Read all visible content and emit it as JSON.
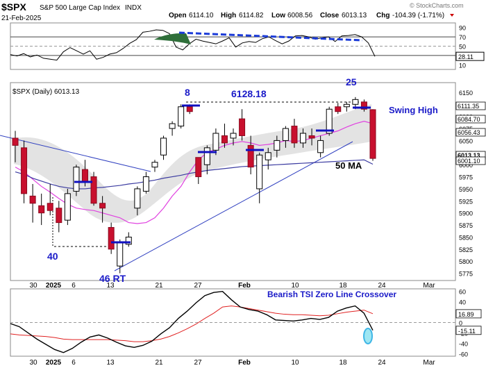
{
  "header": {
    "symbol": "$SPX",
    "description": "S&P 500 Large Cap Index",
    "exchange": "INDX",
    "date": "21-Feb-2025",
    "open_label": "Open",
    "open": "6114.10",
    "high_label": "High",
    "high": "6114.82",
    "low_label": "Low",
    "low": "6008.56",
    "close_label": "Close",
    "close": "6013.13",
    "chg_label": "Chg",
    "chg": "-104.39 (-1.71%)",
    "credit": "© StockCharts.com"
  },
  "chart_data": [
    {
      "type": "line",
      "name": "RSI",
      "ylim": [
        0,
        100
      ],
      "ticks": [
        90,
        70,
        50,
        30,
        10
      ],
      "current_label": "28.11",
      "values": [
        32,
        29,
        34,
        27,
        31,
        24,
        22,
        20,
        38,
        47,
        40,
        33,
        40,
        22,
        26,
        33,
        36,
        45,
        56,
        64,
        80,
        82,
        85,
        84,
        77,
        48,
        42,
        55,
        65,
        61,
        58,
        55,
        61,
        68,
        48,
        57,
        60,
        58,
        66,
        70,
        62,
        55,
        61,
        72,
        73,
        70,
        65,
        68,
        70,
        60,
        72,
        73,
        75,
        70,
        57,
        28
      ]
    },
    {
      "type": "candlestick",
      "title": "$SPX (Daily) 6013.13",
      "ylim": [
        5760,
        6170
      ],
      "ticks": [
        6150,
        6125,
        6100,
        6075,
        6050,
        6025,
        6000,
        5975,
        5950,
        5925,
        5900,
        5875,
        5850,
        5825,
        5800,
        5775
      ],
      "price_labels": [
        "6111.35",
        "6084.70",
        "6056.43",
        "6013.13",
        "6001.10"
      ],
      "x_ticks": [
        "30",
        "2025",
        "6",
        "13",
        "21",
        "27",
        "Feb",
        "10",
        "18",
        "24",
        "Mar"
      ],
      "annotations": [
        "8",
        "6128.18",
        "25",
        "Swing High",
        "50 MA",
        "40",
        "46 RT"
      ],
      "candles": [
        {
          "o": 6055,
          "h": 6070,
          "l": 6005,
          "c": 6040
        },
        {
          "o": 6035,
          "h": 6050,
          "l": 5920,
          "c": 5940
        },
        {
          "o": 5935,
          "h": 5960,
          "l": 5880,
          "c": 5920
        },
        {
          "o": 5915,
          "h": 5940,
          "l": 5875,
          "c": 5900
        },
        {
          "o": 5920,
          "h": 5960,
          "l": 5895,
          "c": 5905
        },
        {
          "o": 5910,
          "h": 5925,
          "l": 5860,
          "c": 5880
        },
        {
          "o": 5885,
          "h": 5950,
          "l": 5875,
          "c": 5940
        },
        {
          "o": 5945,
          "h": 6000,
          "l": 5935,
          "c": 5995
        },
        {
          "o": 5990,
          "h": 6010,
          "l": 5955,
          "c": 5965
        },
        {
          "o": 5975,
          "h": 5985,
          "l": 5915,
          "c": 5920
        },
        {
          "o": 5920,
          "h": 5935,
          "l": 5880,
          "c": 5910
        },
        {
          "o": 5870,
          "h": 5880,
          "l": 5815,
          "c": 5825
        },
        {
          "o": 5790,
          "h": 5845,
          "l": 5775,
          "c": 5840
        },
        {
          "o": 5835,
          "h": 5860,
          "l": 5830,
          "c": 5850
        },
        {
          "o": 5910,
          "h": 5955,
          "l": 5895,
          "c": 5950
        },
        {
          "o": 5945,
          "h": 5985,
          "l": 5940,
          "c": 5975
        },
        {
          "o": 5995,
          "h": 6010,
          "l": 5985,
          "c": 6005
        },
        {
          "o": 6020,
          "h": 6060,
          "l": 6010,
          "c": 6055
        },
        {
          "o": 6075,
          "h": 6090,
          "l": 6060,
          "c": 6085
        },
        {
          "o": 6080,
          "h": 6125,
          "l": 6075,
          "c": 6120
        },
        {
          "o": 6120,
          "h": 6125,
          "l": 6105,
          "c": 6110
        },
        {
          "o": 6015,
          "h": 6015,
          "l": 5960,
          "c": 5975
        },
        {
          "o": 6000,
          "h": 6040,
          "l": 5980,
          "c": 6035
        },
        {
          "o": 6030,
          "h": 6075,
          "l": 6020,
          "c": 6065
        },
        {
          "o": 6060,
          "h": 6085,
          "l": 6035,
          "c": 6045
        },
        {
          "o": 6055,
          "h": 6075,
          "l": 6040,
          "c": 6065
        },
        {
          "o": 6095,
          "h": 6115,
          "l": 6050,
          "c": 6060
        },
        {
          "o": 6040,
          "h": 6060,
          "l": 5980,
          "c": 5995
        },
        {
          "o": 5950,
          "h": 6025,
          "l": 5920,
          "c": 6020
        },
        {
          "o": 6010,
          "h": 6035,
          "l": 5990,
          "c": 6025
        },
        {
          "o": 6030,
          "h": 6060,
          "l": 6015,
          "c": 6050
        },
        {
          "o": 6050,
          "h": 6080,
          "l": 6035,
          "c": 6075
        },
        {
          "o": 6080,
          "h": 6095,
          "l": 6035,
          "c": 6045
        },
        {
          "o": 6045,
          "h": 6075,
          "l": 6035,
          "c": 6065
        },
        {
          "o": 6060,
          "h": 6075,
          "l": 6040,
          "c": 6055
        },
        {
          "o": 6025,
          "h": 6060,
          "l": 6015,
          "c": 6050
        },
        {
          "o": 6065,
          "h": 6120,
          "l": 6060,
          "c": 6115
        },
        {
          "o": 6120,
          "h": 6128,
          "l": 6105,
          "c": 6110
        },
        {
          "o": 6120,
          "h": 6130,
          "l": 6110,
          "c": 6125
        },
        {
          "o": 6125,
          "h": 6140,
          "l": 6115,
          "c": 6135
        },
        {
          "o": 6130,
          "h": 6135,
          "l": 6110,
          "c": 6115
        },
        {
          "o": 6114,
          "h": 6115,
          "l": 6008,
          "c": 6013
        }
      ],
      "series": [
        {
          "name": "",
          "color": "#e040e0",
          "values": [
            5995,
            5985,
            5970,
            5955,
            5943,
            5930,
            5918,
            5910,
            5907,
            5905,
            5900,
            5895,
            5890,
            5880,
            5878,
            5880,
            5890,
            5910,
            5935,
            5955,
            5985,
            6010,
            6025,
            6032,
            6040,
            6045,
            6048,
            6045,
            6040,
            6042,
            6045,
            6050,
            6048,
            6050,
            6055,
            6060,
            6065,
            6070,
            6078,
            6085,
            6090,
            6085
          ]
        },
        {
          "name": "",
          "color": "#3a3aa0",
          "values": [
            5985,
            5980,
            5972,
            5966,
            5960,
            5955,
            5952,
            5950,
            5950,
            5952,
            5953,
            5955,
            5957,
            5960,
            5962,
            5965,
            5968,
            5972,
            5975,
            5978,
            5982,
            5985,
            5988,
            5990,
            5992,
            5994,
            5996,
            5997,
            5998,
            5999,
            6000,
            6001,
            6002,
            6003,
            6004,
            6005,
            6006,
            6007,
            6008,
            6009,
            6010,
            6001
          ]
        }
      ]
    },
    {
      "type": "line",
      "name": "TSI",
      "title": "Bearish TSI Zero Line Crossover",
      "ylim": [
        -65,
        65
      ],
      "ticks": [
        60,
        40,
        20,
        0,
        -20,
        -40,
        -60
      ],
      "current_labels": [
        "16.89",
        "-15.11"
      ],
      "series": [
        {
          "name": "",
          "color": "#000000",
          "values": [
            -2,
            -8,
            -20,
            -32,
            -42,
            -52,
            -58,
            -50,
            -38,
            -28,
            -24,
            -30,
            -38,
            -45,
            -48,
            -44,
            -36,
            -22,
            -10,
            8,
            22,
            38,
            52,
            58,
            60,
            44,
            30,
            25,
            22,
            15,
            5,
            4,
            3,
            5,
            8,
            6,
            10,
            22,
            28,
            32,
            18,
            -15
          ]
        },
        {
          "name": "",
          "color": "#e02020",
          "values": [
            -22,
            -24,
            -25,
            -26,
            -27,
            -29,
            -32,
            -33,
            -33,
            -33,
            -33,
            -33,
            -34,
            -35,
            -37,
            -37,
            -35,
            -32,
            -27,
            -20,
            -12,
            -3,
            8,
            18,
            30,
            32,
            30,
            27,
            24,
            21,
            18,
            16,
            15,
            15,
            14,
            13,
            14,
            17,
            20,
            22,
            24,
            17
          ]
        }
      ]
    }
  ]
}
